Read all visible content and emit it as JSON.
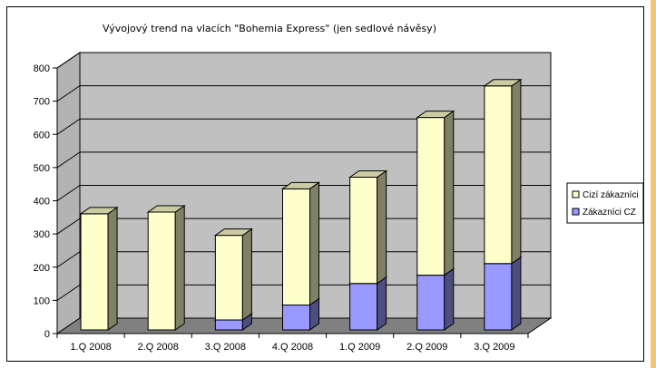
{
  "chart_data": {
    "type": "bar",
    "stacked": true,
    "three_d": true,
    "title": "Vývojový trend na vlacích \"Bohemia Express\" (jen sedlové návěsy)",
    "categories": [
      "1.Q 2008",
      "2.Q 2008",
      "3.Q 2008",
      "4.Q 2008",
      "1.Q 2009",
      "2.Q 2009",
      "3.Q 2009"
    ],
    "series": [
      {
        "name": "Zákazníci CZ",
        "values": [
          0,
          0,
          30,
          75,
          140,
          165,
          200
        ],
        "color": "#9999ff"
      },
      {
        "name": "Cizí zákazníci",
        "values": [
          350,
          355,
          255,
          350,
          320,
          475,
          535
        ],
        "color": "#ffffcc"
      }
    ],
    "legend_order": [
      "Cizí zákazníci",
      "Zákazníci CZ"
    ],
    "y_ticks": [
      "0",
      "100",
      "200",
      "300",
      "400",
      "500",
      "600",
      "700",
      "800"
    ],
    "ylim": [
      0,
      800
    ],
    "grid": true,
    "legend_position": "right",
    "colors": {
      "wall": "#c0c0c0",
      "floor": "#808080",
      "border": "#000000",
      "page_edge": "#f5c66b"
    }
  }
}
